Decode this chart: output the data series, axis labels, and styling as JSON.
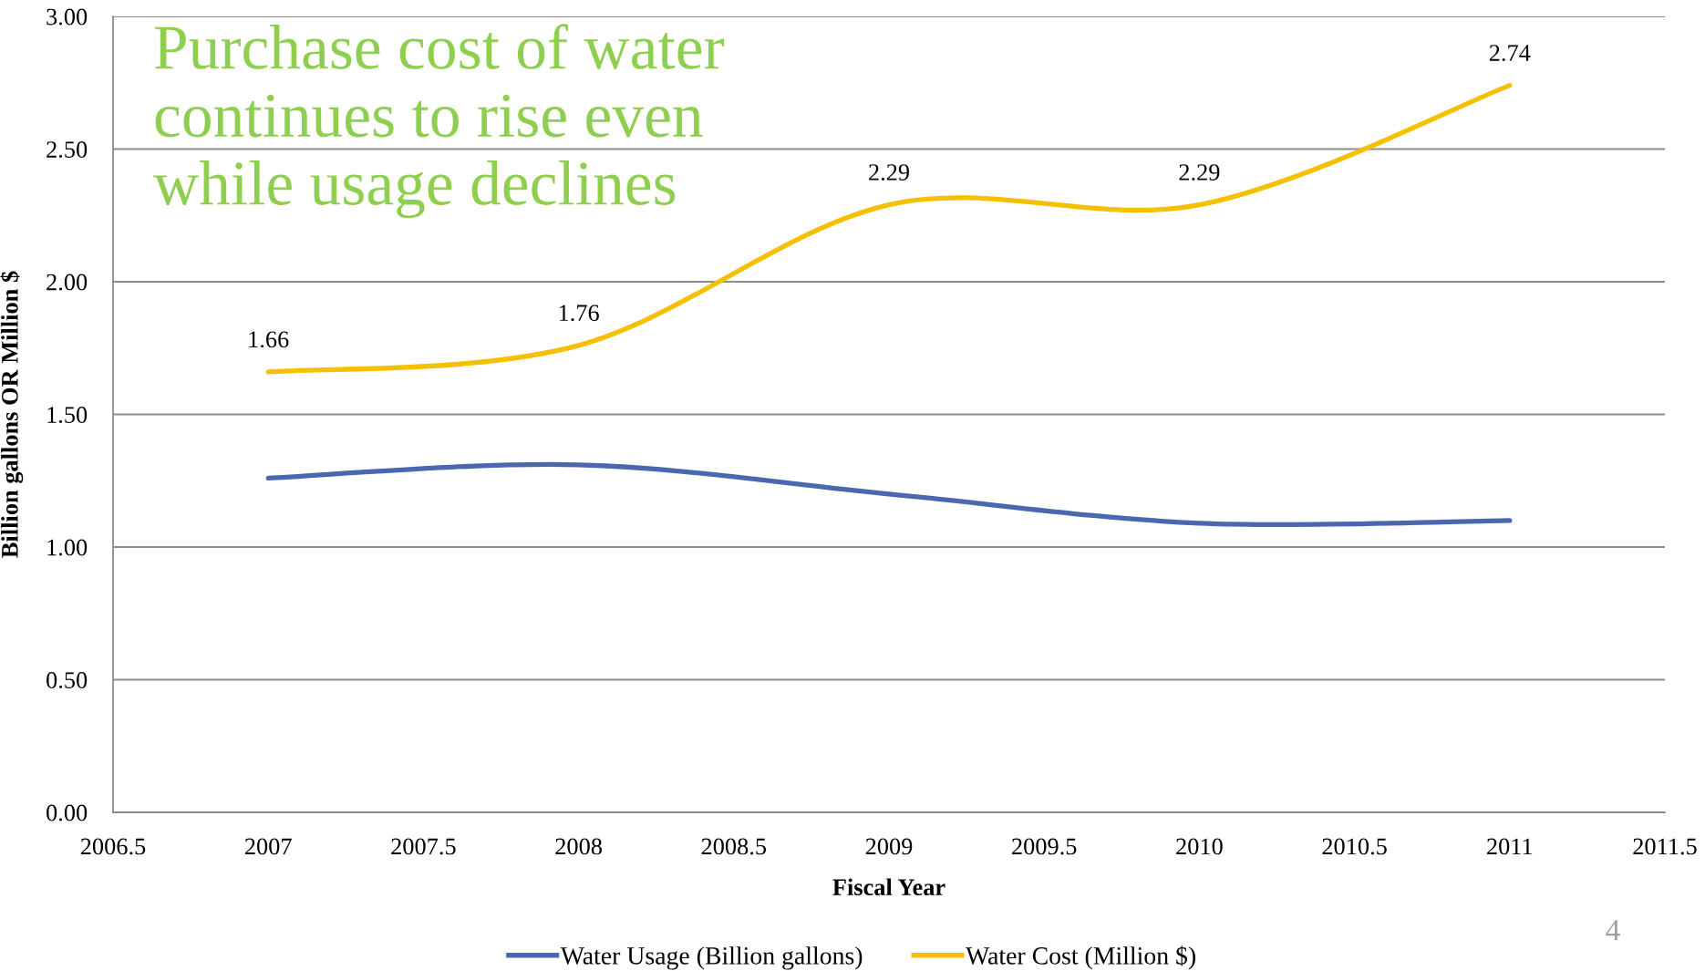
{
  "chart_data": {
    "type": "line",
    "title": "Purchase cost of water continues to rise even while usage declines",
    "xlabel": "Fiscal Year",
    "ylabel": "Billion gallons OR Million $",
    "x": [
      2007,
      2008,
      2009,
      2010,
      2011
    ],
    "series": [
      {
        "name": "Water Usage (Billion gallons)",
        "color": "#4a67b0",
        "values": [
          1.26,
          1.31,
          1.2,
          1.09,
          1.1
        ]
      },
      {
        "name": "Water Cost (Million $)",
        "color": "#f5c000",
        "values": [
          1.66,
          1.76,
          2.29,
          2.29,
          2.74
        ],
        "value_labels": [
          "1.66",
          "1.76",
          "2.29",
          "2.29",
          "2.74"
        ]
      }
    ],
    "xlim": [
      2006.5,
      2011.5
    ],
    "xticks": [
      2006.5,
      2007,
      2007.5,
      2008,
      2008.5,
      2009,
      2009.5,
      2010,
      2010.5,
      2011,
      2011.5
    ],
    "ylim": [
      0,
      3
    ],
    "yticks": [
      {
        "value": 0,
        "label": "0.00"
      },
      {
        "value": 0.5,
        "label": "0.50"
      },
      {
        "value": 1,
        "label": "1.00"
      },
      {
        "value": 1.5,
        "label": "1.50"
      },
      {
        "value": 2,
        "label": "2.00"
      },
      {
        "value": 2.5,
        "label": "2.50"
      },
      {
        "value": 3,
        "label": "3.00"
      }
    ],
    "grid": "y",
    "legend": "bottom",
    "marker": "none",
    "line_style": "solid",
    "annotations": [
      "4"
    ]
  }
}
